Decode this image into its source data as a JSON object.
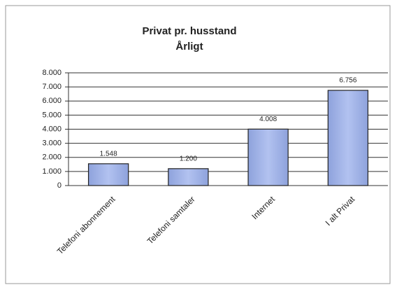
{
  "chart_data": {
    "type": "bar",
    "title": "Privat pr. husstand",
    "subtitle": "Årligt",
    "categories": [
      "Telefoni abonnement",
      "Telefoni samtaler",
      "Internet",
      "I alt Privat"
    ],
    "values": [
      1548,
      1200,
      4008,
      6756
    ],
    "value_labels": [
      "1.548",
      "1.200",
      "4.008",
      "6.756"
    ],
    "color": "#9db0e6",
    "ylim": [
      0,
      8000
    ],
    "yticks": [
      0,
      {
        "value": 1000,
        "label": "1.000"
      },
      {
        "value": 2000,
        "label": "2.000"
      },
      {
        "value": 3000,
        "label": "3.000"
      },
      {
        "value": 4000,
        "label": "4.000"
      },
      {
        "value": 5000,
        "label": "5.000"
      },
      {
        "value": 6000,
        "label": "6.000"
      },
      {
        "value": 7000,
        "label": "7.000"
      },
      {
        "value": 8000,
        "label": "8.000"
      }
    ],
    "grid": true
  }
}
